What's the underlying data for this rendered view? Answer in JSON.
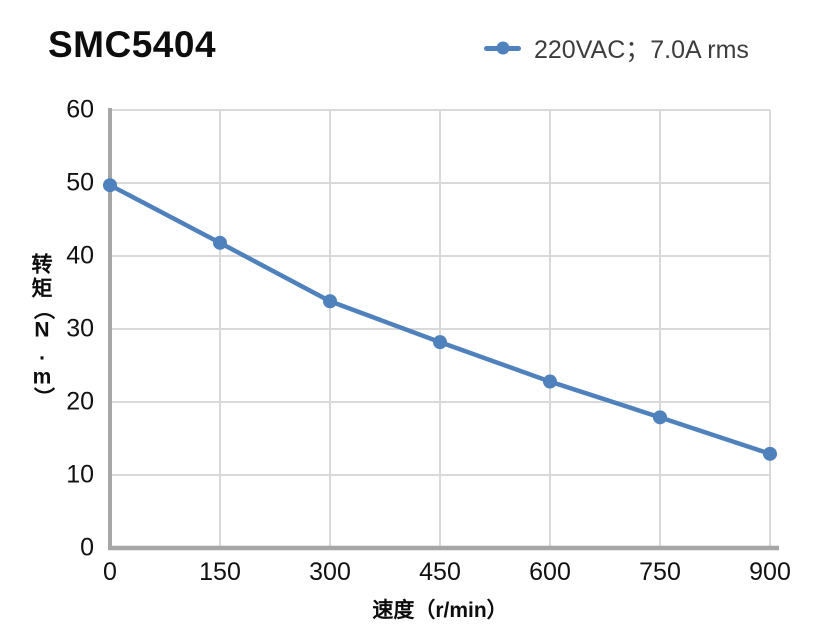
{
  "header": {
    "title": "SMC5404"
  },
  "legend": {
    "label": "220VAC；7.0A rms",
    "marker": "line-with-dot",
    "color": "#4F81BD"
  },
  "chart_data": {
    "type": "line",
    "title": "SMC5404",
    "x": [
      0,
      150,
      300,
      450,
      600,
      750,
      900
    ],
    "series": [
      {
        "name": "220VAC；7.0A rms",
        "values": [
          49.7,
          41.8,
          33.8,
          28.2,
          22.8,
          17.9,
          12.9
        ],
        "color": "#4F81BD",
        "marker": "circle"
      }
    ],
    "xlabel": "速度（r/min）",
    "ylabel": "转矩（N.m）",
    "xlim": [
      0,
      900
    ],
    "ylim": [
      0,
      60
    ],
    "xticks": [
      0,
      150,
      300,
      450,
      600,
      750,
      900
    ],
    "yticks": [
      0,
      10,
      20,
      30,
      40,
      50,
      60
    ],
    "grid": true,
    "legend_position": "top-right",
    "colors": {
      "series": "#4F81BD",
      "grid": "#d9d9d9",
      "axis": "#a6a6a6",
      "text": "#111111"
    }
  }
}
